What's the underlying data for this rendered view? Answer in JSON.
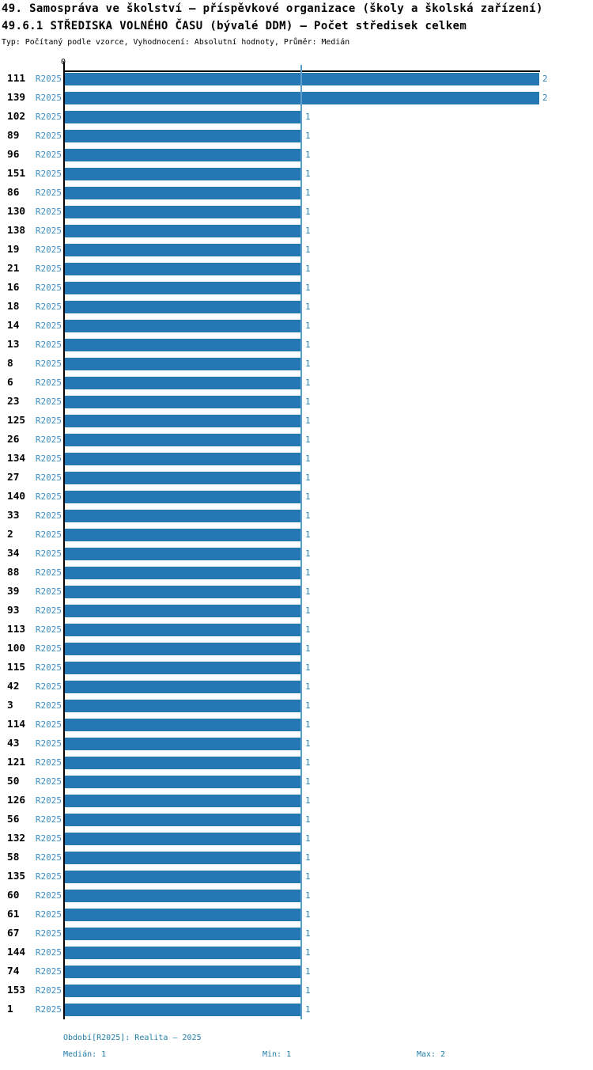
{
  "header": {
    "title_line1": "49. Samospráva ve školství – příspěvkové organizace (školy a školská zařízení)",
    "title_line2": "49.6.1 STŘEDISKA VOLNÉHO ČASU (bývalé DDM) – Počet středisek celkem",
    "subtitle": "Typ: Počítaný podle vzorce, Vyhodnocení: Absolutní hodnoty, Průměr: Medián"
  },
  "chart_data": {
    "type": "bar",
    "orientation": "horizontal",
    "title": "49.6.1 STŘEDISKA VOLNÉHO ČASU (bývalé DDM) – Počet středisek celkem",
    "x_axis": {
      "min": 0,
      "max": 2,
      "tick_labels": [
        "0"
      ],
      "gridline_at": 1,
      "grid": true
    },
    "period_label": "R2025",
    "bar_color": "#2478b4",
    "label_color": "#3a8cc4",
    "median": 1,
    "min": 1,
    "max": 2,
    "rows": [
      {
        "label": "111",
        "value": 2
      },
      {
        "label": "139",
        "value": 2
      },
      {
        "label": "102",
        "value": 1
      },
      {
        "label": "89",
        "value": 1
      },
      {
        "label": "96",
        "value": 1
      },
      {
        "label": "151",
        "value": 1
      },
      {
        "label": "86",
        "value": 1
      },
      {
        "label": "130",
        "value": 1
      },
      {
        "label": "138",
        "value": 1
      },
      {
        "label": "19",
        "value": 1
      },
      {
        "label": "21",
        "value": 1
      },
      {
        "label": "16",
        "value": 1
      },
      {
        "label": "18",
        "value": 1
      },
      {
        "label": "14",
        "value": 1
      },
      {
        "label": "13",
        "value": 1
      },
      {
        "label": "8",
        "value": 1
      },
      {
        "label": "6",
        "value": 1
      },
      {
        "label": "23",
        "value": 1
      },
      {
        "label": "125",
        "value": 1
      },
      {
        "label": "26",
        "value": 1
      },
      {
        "label": "134",
        "value": 1
      },
      {
        "label": "27",
        "value": 1
      },
      {
        "label": "140",
        "value": 1
      },
      {
        "label": "33",
        "value": 1
      },
      {
        "label": "2",
        "value": 1
      },
      {
        "label": "34",
        "value": 1
      },
      {
        "label": "88",
        "value": 1
      },
      {
        "label": "39",
        "value": 1
      },
      {
        "label": "93",
        "value": 1
      },
      {
        "label": "113",
        "value": 1
      },
      {
        "label": "100",
        "value": 1
      },
      {
        "label": "115",
        "value": 1
      },
      {
        "label": "42",
        "value": 1
      },
      {
        "label": "3",
        "value": 1
      },
      {
        "label": "114",
        "value": 1
      },
      {
        "label": "43",
        "value": 1
      },
      {
        "label": "121",
        "value": 1
      },
      {
        "label": "50",
        "value": 1
      },
      {
        "label": "126",
        "value": 1
      },
      {
        "label": "56",
        "value": 1
      },
      {
        "label": "132",
        "value": 1
      },
      {
        "label": "58",
        "value": 1
      },
      {
        "label": "135",
        "value": 1
      },
      {
        "label": "60",
        "value": 1
      },
      {
        "label": "61",
        "value": 1
      },
      {
        "label": "67",
        "value": 1
      },
      {
        "label": "144",
        "value": 1
      },
      {
        "label": "74",
        "value": 1
      },
      {
        "label": "153",
        "value": 1
      },
      {
        "label": "1",
        "value": 1
      }
    ]
  },
  "footer": {
    "period_info": "Období[R2025]: Realita – 2025",
    "median": "Medián: 1",
    "min": "Min: 1",
    "max": "Max: 2"
  }
}
